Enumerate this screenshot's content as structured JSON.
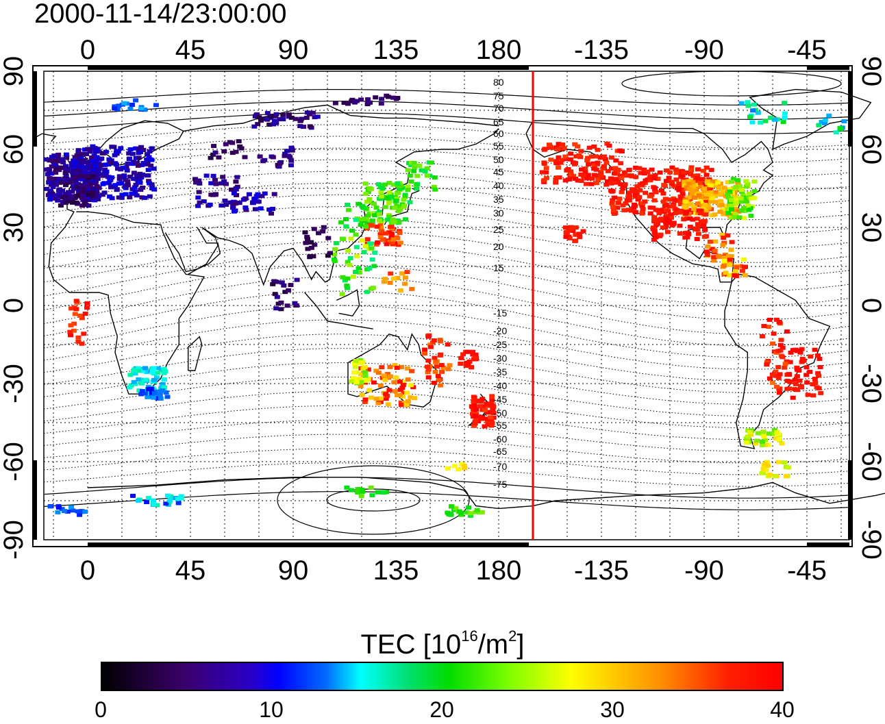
{
  "title": "2000-11-14/23:00:00",
  "map": {
    "top_axis_labels": [
      "0",
      "45",
      "90",
      "135",
      "180",
      "-135",
      "-90",
      "-45"
    ],
    "bottom_axis_labels": [
      "0",
      "45",
      "90",
      "135",
      "180",
      "-135",
      "-90",
      "-45"
    ],
    "left_axis_labels": [
      "90",
      "60",
      "30",
      "0",
      "-30",
      "-60",
      "-90"
    ],
    "right_axis_labels": [
      "90",
      "60",
      "30",
      "0",
      "-30",
      "-60",
      "-90"
    ],
    "contour_labels": [
      "80",
      "75",
      "70",
      "65",
      "60",
      "55",
      "50",
      "45",
      "40",
      "35",
      "30",
      "25",
      "20",
      "15",
      "-15",
      "-20",
      "-25",
      "-30",
      "-35",
      "-40",
      "-45",
      "-50",
      "-55",
      "-60",
      "-65",
      "-70",
      "-75"
    ],
    "terminator_color": "#ff0000",
    "grid": "dotted"
  },
  "colorbar": {
    "title_prefix": "TEC  [10",
    "title_exp1": "16",
    "title_mid": "/m",
    "title_exp2": "2",
    "title_suffix": "]",
    "labels": [
      "0",
      "10",
      "20",
      "30",
      "40"
    ],
    "min": 0,
    "max": 40,
    "colormap": [
      "#000000",
      "#3a006a",
      "#0000ff",
      "#00ffff",
      "#00dd00",
      "#ffff00",
      "#ff9000",
      "#ff0000"
    ]
  }
}
